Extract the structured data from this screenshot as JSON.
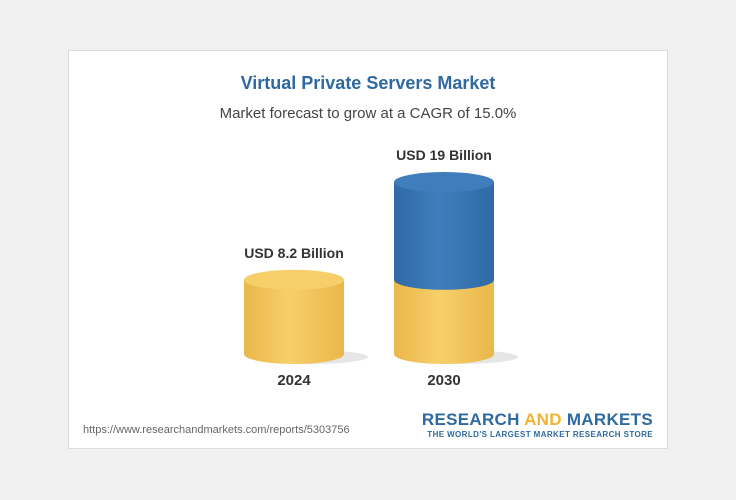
{
  "title": "Virtual Private Servers Market",
  "subtitle": "Market forecast to grow at a CAGR of 15.0%",
  "colors": {
    "title": "#2e6aa1",
    "base_bar": "#f7cf6a",
    "base_bar_dark": "#eab74a",
    "growth_bar": "#3f7dbc",
    "growth_bar_dark": "#2f6aa6"
  },
  "chart_data": {
    "type": "bar",
    "categories": [
      "2024",
      "2030"
    ],
    "values": [
      8.2,
      19
    ],
    "value_labels": [
      "USD 8.2 Billion",
      "USD 19 Billion"
    ],
    "unit": "USD Billion",
    "cagr": "15.0%"
  },
  "footer": {
    "url": "https://www.researchandmarkets.com/reports/5303756",
    "brand_part1": "RESEARCH ",
    "brand_part2": "AND",
    "brand_part3": " MARKETS",
    "tagline": "THE WORLD'S LARGEST MARKET RESEARCH STORE"
  }
}
